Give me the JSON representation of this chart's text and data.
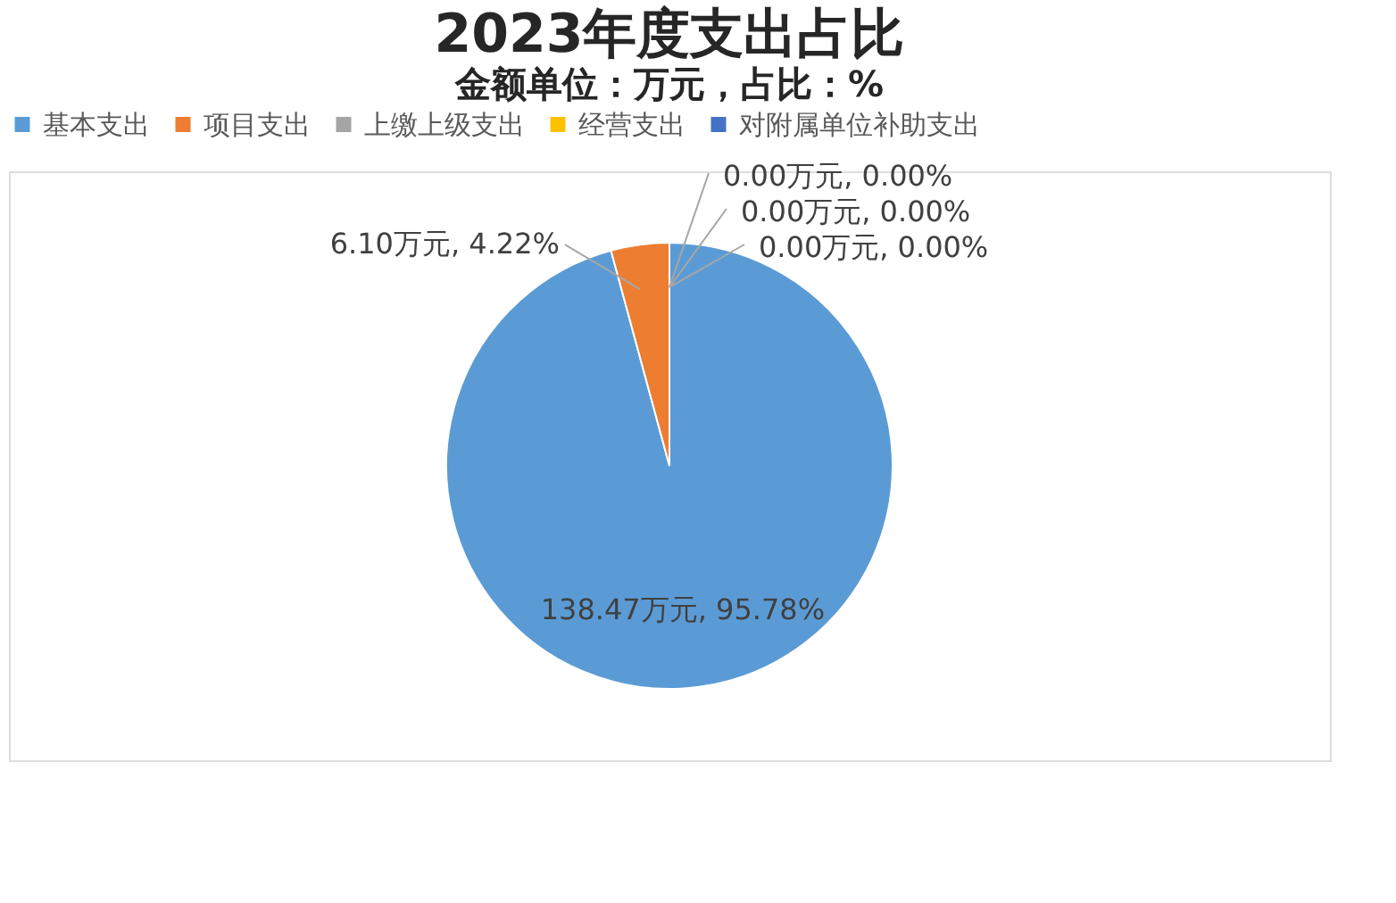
{
  "chart_data": {
    "type": "pie",
    "title": "2023年度支出占比",
    "subtitle": "金额单位：万元，占比：%",
    "categories": [
      "基本支出",
      "项目支出",
      "上缴上级支出",
      "经营支出",
      "对附属单位补助支出"
    ],
    "values": [
      138.47,
      6.1,
      0.0,
      0.0,
      0.0
    ],
    "colors": [
      "#5b9bd5",
      "#ed7d31",
      "#a5a5a5",
      "#ffc000",
      "#4472c4"
    ],
    "value_labels": [
      "138.47万元, 95.78%",
      "6.10万元, 4.22%",
      "0.00万元, 0.00%",
      "0.00万元, 0.00%",
      "0.00万元, 0.00%"
    ],
    "legend": "top"
  }
}
